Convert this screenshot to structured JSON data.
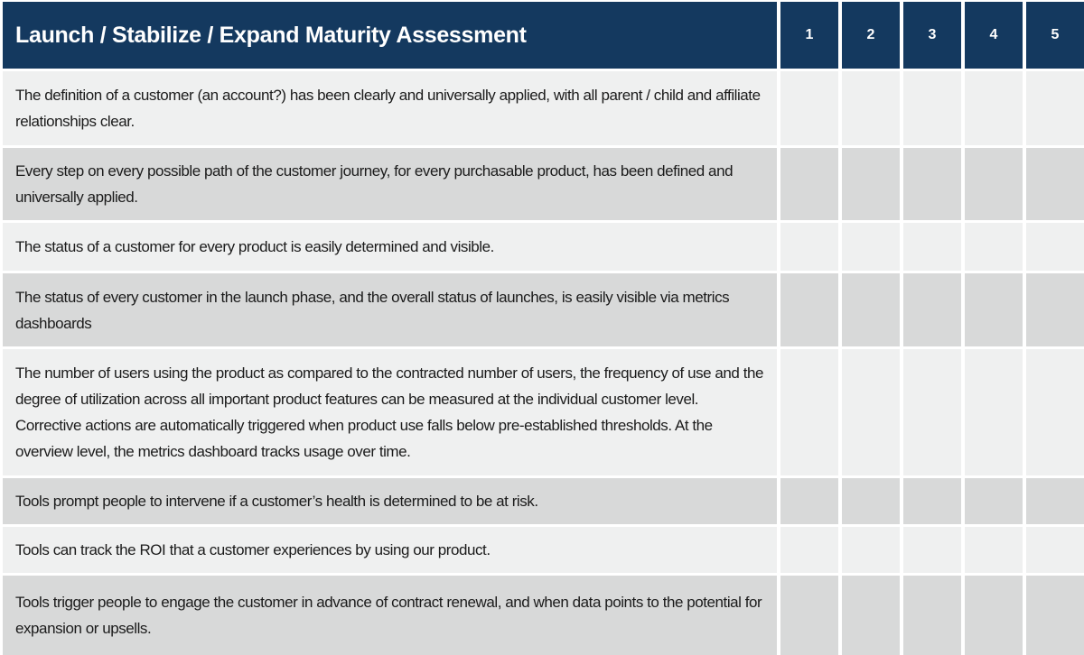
{
  "table": {
    "title": "Launch / Stabilize / Expand Maturity Assessment",
    "score_columns": [
      "1",
      "2",
      "3",
      "4",
      "5"
    ],
    "rows": [
      "The definition of a customer (an account?) has been clearly and universally applied, with all parent / child and affiliate relationships clear.",
      "Every step on every possible path of the customer journey, for every purchasable product, has been defined and universally applied.",
      "The status of a customer for every product is easily determined and visible.",
      "The status of every customer in the launch phase, and the overall status of launches, is easily visible via metrics dashboards",
      "The number of users using the product as compared to the contracted number of users, the frequency of use and the degree of utilization across all important product features can be measured at the individual customer level.  Corrective actions are automatically triggered when product use falls below pre-established thresholds. At the overview level, the metrics dashboard tracks usage over time.",
      "Tools prompt people to intervene if a customer’s health is determined to be at risk.",
      "Tools can track the ROI that a customer experiences by using our product.",
      "Tools trigger people to engage the customer in advance of contract renewal, and when data points to the potential for expansion or upsells."
    ],
    "colors": {
      "header_bg": "#14395f",
      "header_text": "#ffffff",
      "row_light": "#eff0f0",
      "row_dark": "#d8d9d9",
      "body_text": "#1b1b1b"
    }
  }
}
